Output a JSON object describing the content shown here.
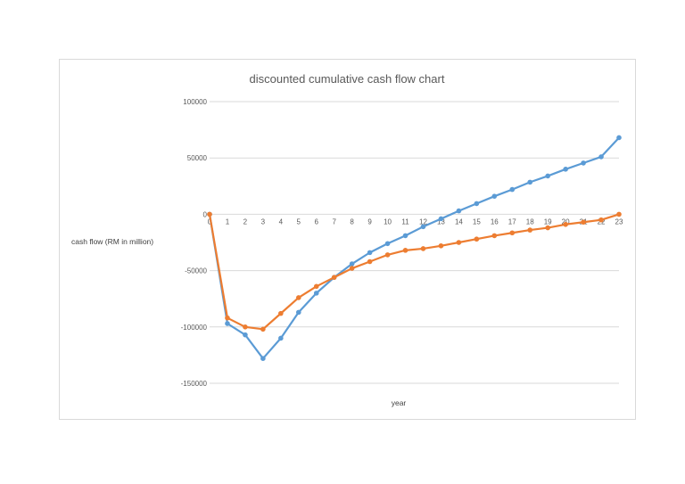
{
  "chart_data": {
    "type": "line",
    "title": "discounted cumulative cash flow  chart",
    "xlabel": "year",
    "ylabel": "cash flow (RM in million)",
    "ylim": [
      -150000,
      100000
    ],
    "yticks": [
      100000,
      50000,
      0,
      -50000,
      -100000,
      -150000
    ],
    "ytick_labels": [
      "100000",
      "50000",
      "0",
      "-50000",
      "-100000",
      "-150000"
    ],
    "x": [
      0,
      1,
      2,
      3,
      4,
      5,
      6,
      7,
      8,
      9,
      10,
      11,
      12,
      13,
      14,
      15,
      16,
      17,
      18,
      19,
      20,
      21,
      22,
      23
    ],
    "grid": true,
    "legend": "none",
    "series": [
      {
        "color": "#5B9BD5",
        "values": [
          0,
          -97000,
          -107000,
          -128000,
          -110000,
          -87000,
          -70000,
          -56000,
          -44000,
          -34000,
          -26000,
          -19000,
          -11000,
          -4000,
          3000,
          9500,
          16000,
          22000,
          28500,
          34000,
          40000,
          45500,
          51000,
          68000
        ]
      },
      {
        "color": "#ED7D31",
        "values": [
          0,
          -92000,
          -100000,
          -102000,
          -88000,
          -74000,
          -64000,
          -56000,
          -48000,
          -42000,
          -36000,
          -32000,
          -30500,
          -28000,
          -25000,
          -22000,
          -19000,
          -16500,
          -14000,
          -12000,
          -9000,
          -7000,
          -5000,
          0
        ]
      }
    ]
  }
}
